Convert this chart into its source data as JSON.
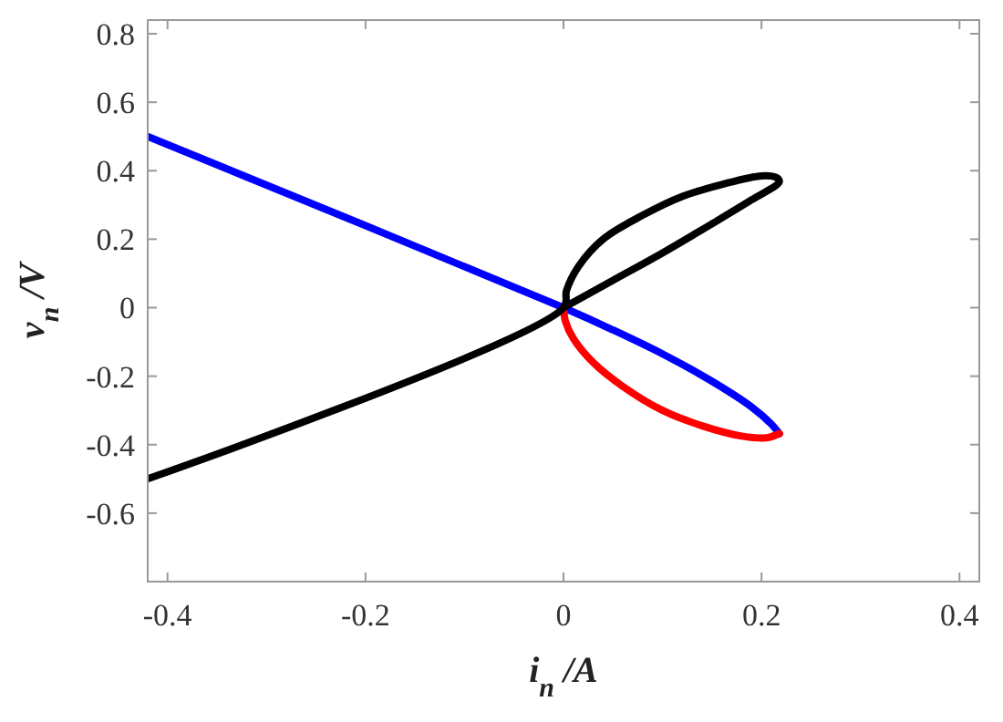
{
  "chart_data": {
    "type": "line",
    "xlabel": "i$_{n}$ /A",
    "ylabel": "v$_{n}$ /V",
    "xlim": [
      -0.42,
      0.42
    ],
    "ylim": [
      -0.8,
      0.84
    ],
    "xticks": [
      -0.4,
      -0.2,
      0,
      0.2,
      0.4
    ],
    "yticks": [
      -0.6,
      -0.4,
      -0.2,
      0,
      0.2,
      0.4,
      0.6,
      0.8
    ],
    "grid": false,
    "marker": "none",
    "line_style": "solid",
    "series": [
      {
        "color": "#0000ff",
        "x": [
          -0.42,
          0,
          0.05,
          0.1,
          0.15,
          0.19,
          0.21,
          0.218
        ],
        "values": [
          0.5,
          0,
          -0.065,
          -0.135,
          -0.215,
          -0.29,
          -0.34,
          -0.368
        ]
      },
      {
        "color": "#ff0000",
        "x": [
          0,
          0.002,
          0.01,
          0.03,
          0.06,
          0.1,
          0.14,
          0.18,
          0.205,
          0.218
        ],
        "values": [
          0,
          -0.04,
          -0.09,
          -0.16,
          -0.23,
          -0.3,
          -0.345,
          -0.375,
          -0.38,
          -0.368
        ]
      },
      {
        "color": "#000000",
        "x": [
          -0.42,
          0,
          0.003,
          0.015,
          0.04,
          0.08,
          0.12,
          0.16,
          0.2,
          0.215,
          0.218,
          0.19,
          0.15,
          0.1,
          0.05,
          0
        ],
        "values": [
          -0.5,
          0,
          0.05,
          0.12,
          0.2,
          0.27,
          0.325,
          0.36,
          0.385,
          0.38,
          0.368,
          0.315,
          0.245,
          0.16,
          0.08,
          0
        ]
      }
    ]
  }
}
